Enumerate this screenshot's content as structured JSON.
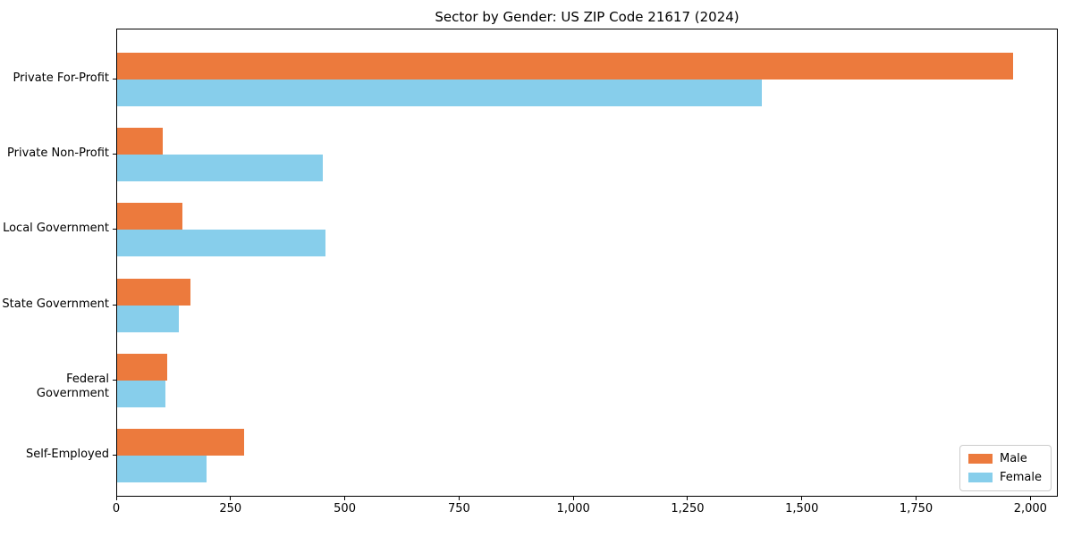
{
  "chart_data": {
    "type": "bar",
    "orientation": "horizontal",
    "title": "Sector by Gender: US ZIP Code 21617 (2024)",
    "categories": [
      "Private For-Profit",
      "Private Non-Profit",
      "Local Government",
      "State Government",
      "Federal Government",
      "Self-Employed"
    ],
    "series": [
      {
        "name": "Male",
        "color": "#EC7A3D",
        "values": [
          1960,
          100,
          142,
          160,
          110,
          278
        ]
      },
      {
        "name": "Female",
        "color": "#87CEEB",
        "values": [
          1410,
          450,
          455,
          135,
          105,
          195
        ]
      }
    ],
    "xlabel": "",
    "ylabel": "",
    "xlim": [
      0,
      2060
    ],
    "xticks": [
      0,
      250,
      500,
      750,
      1000,
      1250,
      1500,
      1750,
      2000
    ],
    "xtick_labels": [
      "0",
      "250",
      "500",
      "750",
      "1,000",
      "1,250",
      "1,500",
      "1,750",
      "2,000"
    ],
    "grid": false,
    "legend": {
      "position": "lower right"
    },
    "colors": {
      "background": "#ffffff",
      "axis": "#000000",
      "text": "#000000",
      "legend_border": "#cccccc"
    }
  }
}
